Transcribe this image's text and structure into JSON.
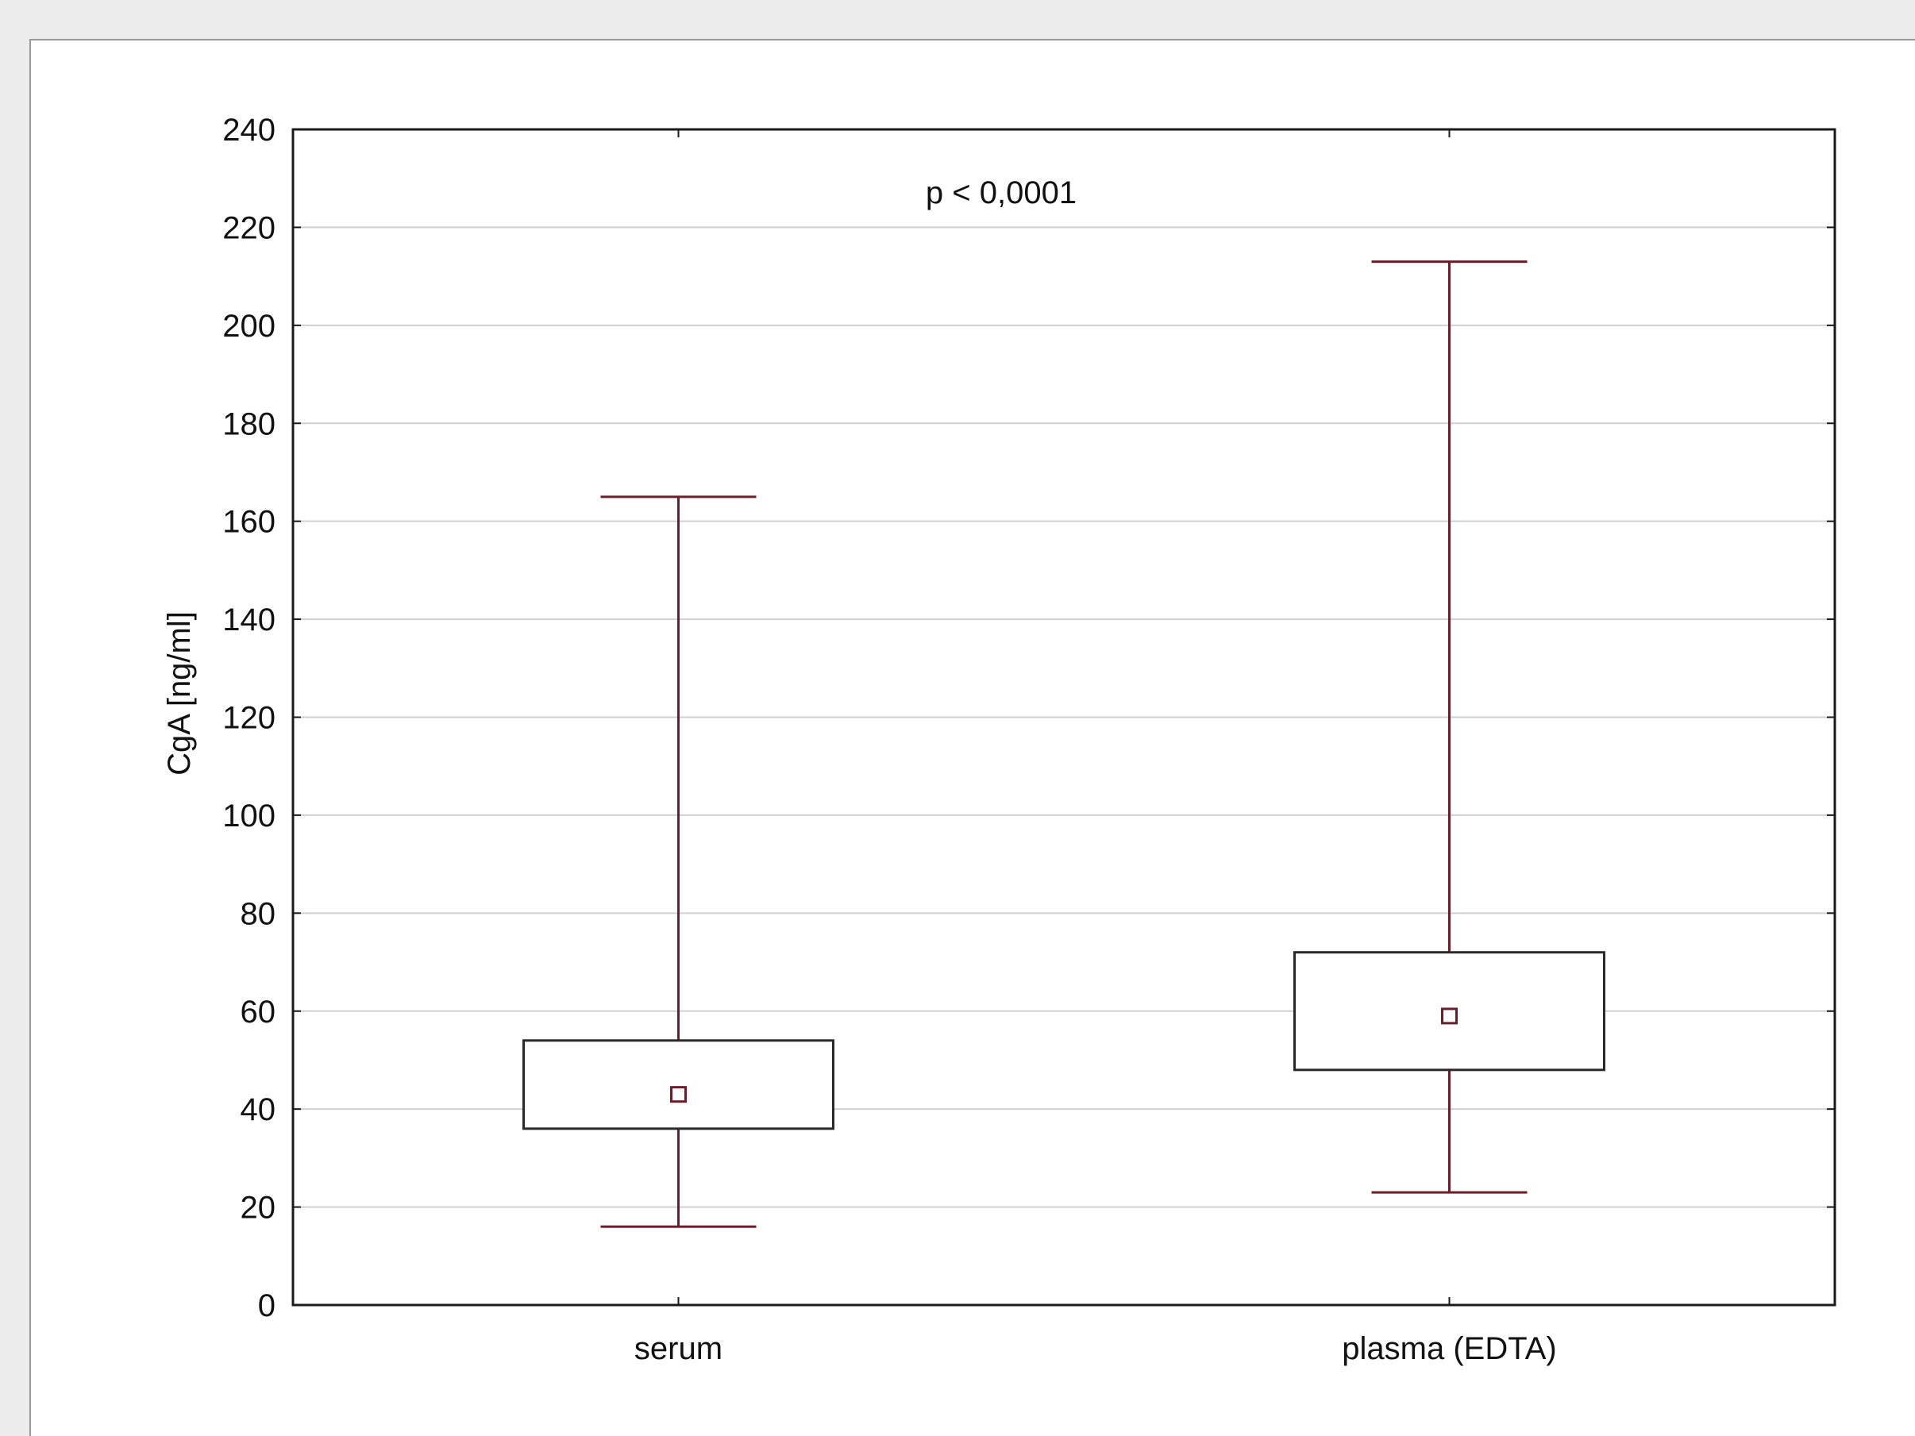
{
  "chart_data": {
    "type": "box",
    "categories": [
      "serum",
      "plasma (EDTA)"
    ],
    "boxes": [
      {
        "category": "serum",
        "whisker_low": 16,
        "q1": 36,
        "mean": 43,
        "q3": 54,
        "whisker_high": 165
      },
      {
        "category": "plasma (EDTA)",
        "whisker_low": 23,
        "q1": 48,
        "mean": 59,
        "q3": 72,
        "whisker_high": 213
      }
    ],
    "ylabel": "CgA [ng/ml]",
    "xlabel": "",
    "ylim": [
      0,
      240
    ],
    "yticks": [
      0,
      20,
      40,
      60,
      80,
      100,
      120,
      140,
      160,
      180,
      200,
      220,
      240
    ],
    "annotation": "p < 0,0001",
    "grid": true,
    "colors": {
      "whisker": "#6b1d2a",
      "box": "#2a2a2a",
      "mean_marker": "#6b1d2a",
      "grid": "#cfcfcf",
      "frame": "#1a1a1a"
    }
  }
}
